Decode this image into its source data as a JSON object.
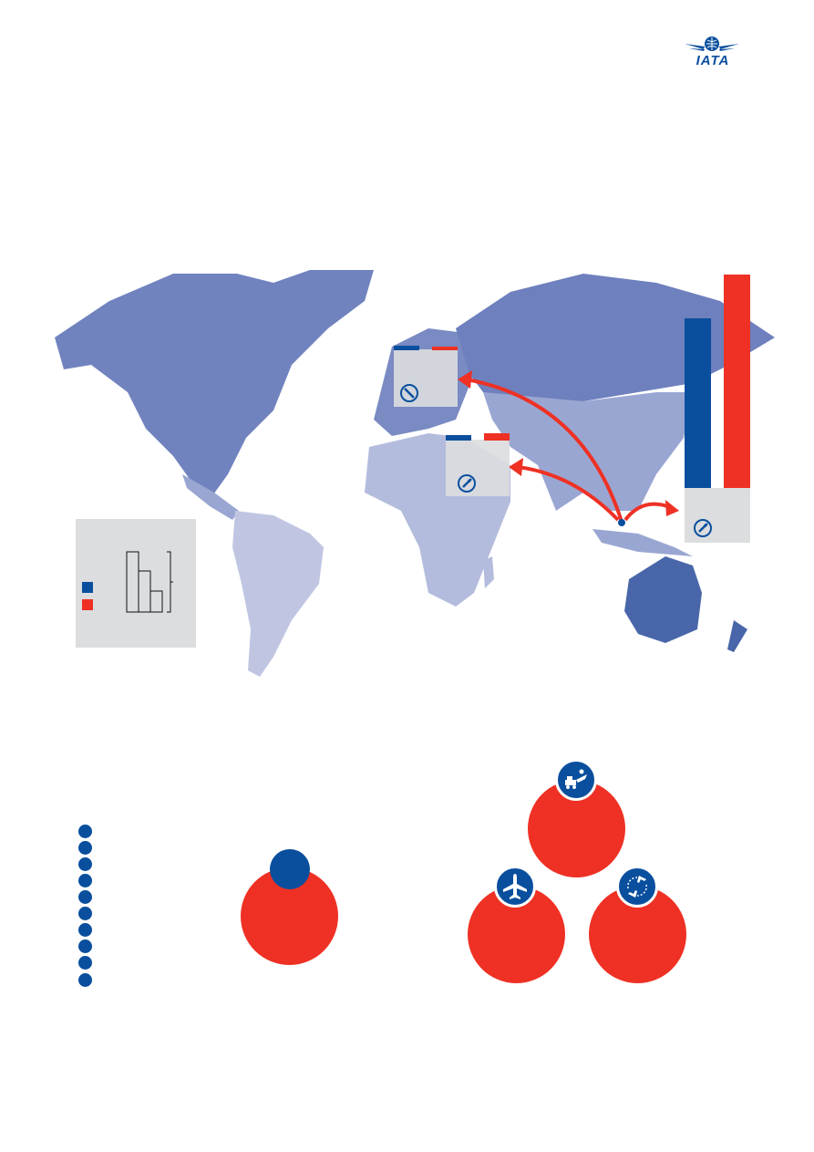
{
  "header": {
    "logo": {
      "text": "IATA",
      "icon": "iata-globe-wings-icon"
    }
  },
  "colors": {
    "blue": "#0a4f9e",
    "red": "#ee3124",
    "panel_gray": "#dcdddf",
    "north_america": "#7183bf",
    "russia": "#6e80bd",
    "south_america": "#c0c6e2",
    "africa": "#b4bcdd",
    "asia": "#9aa6d2",
    "oceania": "#4866a9"
  },
  "map": {
    "icons": [
      "compass-icon-europe",
      "compass-icon-middle-east",
      "compass-icon-asia"
    ],
    "routes": [
      "route-to-europe",
      "route-to-middle-east",
      "route-to-east-asia"
    ]
  },
  "bottom": {
    "list_markers": 10,
    "badges": [
      "runway-vehicle-icon",
      "airplane-icon",
      "rotating-planes-icon"
    ]
  }
}
